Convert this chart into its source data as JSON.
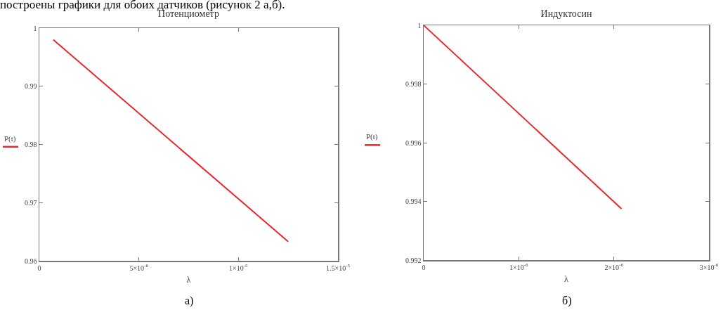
{
  "chart_data": [
    {
      "type": "line",
      "title": "Потенциометр",
      "xlabel": "λ",
      "ylabel": "P(t)",
      "annotations": [
        "а)",
        "построены графики для обоих датчиков (рисунок 2 а,б)."
      ],
      "xlim": [
        0,
        1.5e-05
      ],
      "xticks": [
        0,
        {
          "value": 5e-06,
          "label": "5×10$^{-6}$"
        },
        {
          "value": 1e-05,
          "label": "1×10$^{-5}$"
        },
        {
          "value": 1.5e-05,
          "label": "1.5×10$^{-5}$"
        }
      ],
      "ylim": [
        0.96,
        1
      ],
      "yticks": [
        0.96,
        0.97,
        0.98,
        0.99,
        1
      ],
      "grid": false,
      "marker": "none",
      "line_style": "solid",
      "series": [
        {
          "color": "#e8262b",
          "x": [
            7e-07,
            1.25e-05
          ],
          "values": [
            0.998,
            0.9633
          ]
        }
      ]
    },
    {
      "type": "line",
      "title": "Индуктосин",
      "xlabel": "λ",
      "ylabel": "P(t)",
      "annotations": [
        "б)"
      ],
      "xlim": [
        0,
        3e-06
      ],
      "xticks": [
        0,
        {
          "value": 1e-06,
          "label": "1×10$^{-6}$"
        },
        {
          "value": 2e-06,
          "label": "2×10$^{-6}$"
        },
        {
          "value": 3e-06,
          "label": "3×10$^{-6}$"
        }
      ],
      "ylim": [
        0.992,
        1
      ],
      "yticks": [
        0.992,
        0.994,
        0.996,
        0.998,
        1
      ],
      "grid": false,
      "marker": "none",
      "line_style": "solid",
      "series": [
        {
          "color": "#e8262b",
          "x": [
            0,
            2.08e-06
          ],
          "values": [
            1,
            0.99375
          ]
        }
      ]
    }
  ]
}
